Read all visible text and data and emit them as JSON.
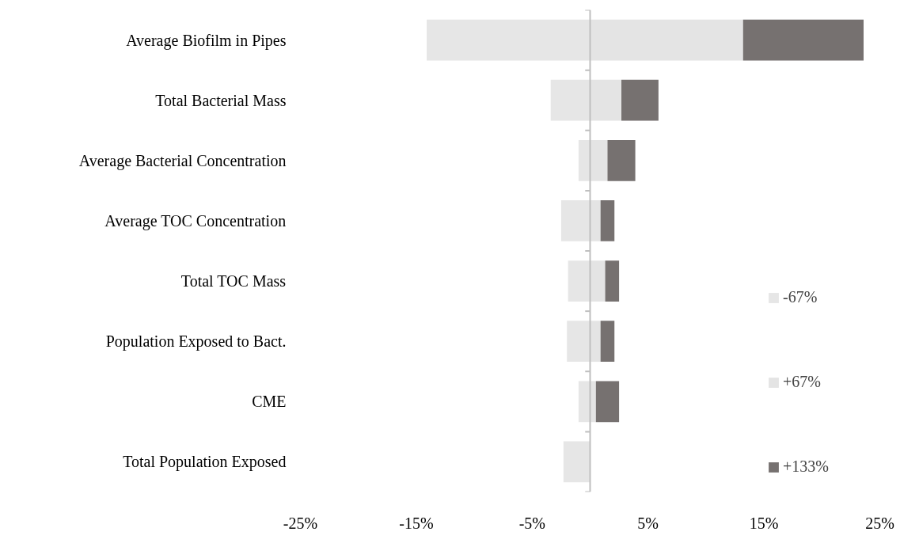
{
  "chart_data": {
    "type": "bar",
    "orientation": "horizontal",
    "stacked": true,
    "categories": [
      "Average Biofilm in Pipes",
      "Total Bacterial Mass",
      "Average Bacterial Concentration",
      "Average TOC Concentration",
      "Total TOC Mass",
      "Population Exposed to Bact.",
      "CME",
      "Total Population Exposed"
    ],
    "series": [
      {
        "name": "-67%",
        "color": "#e6e6e6",
        "values": [
          -14.1,
          -3.4,
          -1.0,
          -2.5,
          -1.9,
          -2.0,
          -1.0,
          -2.3
        ]
      },
      {
        "name": "+67%",
        "color": "#e4e4e4",
        "values": [
          13.2,
          2.7,
          1.5,
          0.9,
          1.3,
          0.9,
          0.5,
          0
        ]
      },
      {
        "name": "+133%",
        "color": "#767170",
        "values": [
          10.4,
          3.2,
          2.4,
          1.2,
          1.2,
          1.2,
          2.0,
          0
        ]
      }
    ],
    "xlim": [
      -25,
      25
    ],
    "xticks": [
      {
        "value": -25,
        "label": "-25%"
      },
      {
        "value": -15,
        "label": "-15%"
      },
      {
        "value": -5,
        "label": "-5%"
      },
      {
        "value": 5,
        "label": "5%"
      },
      {
        "value": 15,
        "label": "15%"
      },
      {
        "value": 25,
        "label": "25%"
      }
    ],
    "grid": false,
    "legend": "right"
  }
}
